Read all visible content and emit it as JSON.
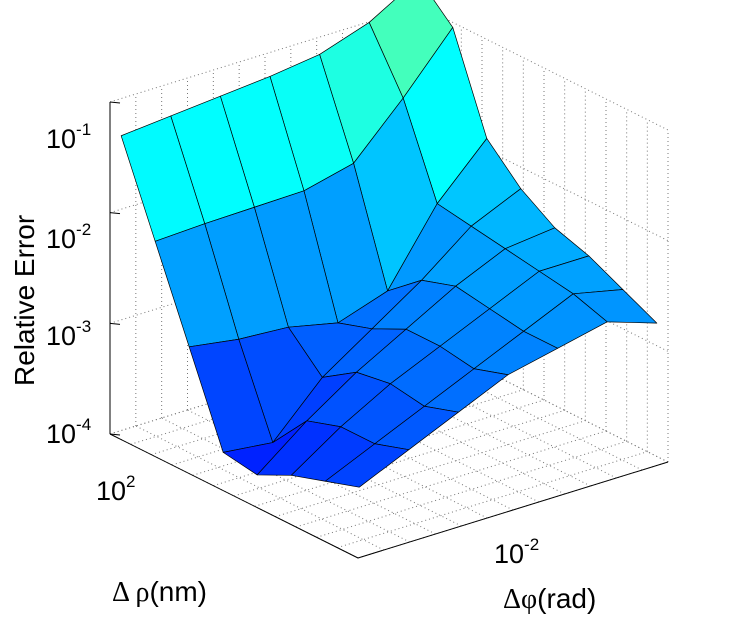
{
  "chart_data": {
    "type": "surface",
    "zlabel": "Relative Error",
    "xlabel_parts": {
      "greek": "Δ ρ",
      "unit": "(nm)"
    },
    "ylabel_parts": {
      "greek": "Δφ",
      "unit": "(rad)"
    },
    "zscale": "log",
    "zlim": [
      0.0001,
      0.1
    ],
    "z_ticks": [
      {
        "base": "10",
        "exp": "-1"
      },
      {
        "base": "10",
        "exp": "-2"
      },
      {
        "base": "10",
        "exp": "-3"
      },
      {
        "base": "10",
        "exp": "-4"
      }
    ],
    "x_ticks": [
      {
        "base": "10",
        "exp": "2"
      }
    ],
    "y_ticks": [
      {
        "base": "10",
        "exp": "-2"
      }
    ],
    "grid": true,
    "colormap": "jet",
    "z_values_log10": [
      [
        -1.3,
        -1.26,
        -1.22,
        -1.18,
        -1.12,
        -0.97,
        -0.71
      ],
      [
        -2.1,
        -2.08,
        -2.07,
        -2.06,
        -1.95,
        -1.5,
        -1.0
      ],
      [
        -2.9,
        -2.97,
        -3.0,
        -3.1,
        -2.95,
        -2.3,
        -1.85
      ],
      [
        -3.7,
        -3.75,
        -3.3,
        -3.0,
        -2.7,
        -2.35,
        -2.15
      ],
      [
        -3.75,
        -3.4,
        -3.1,
        -2.85,
        -2.6,
        -2.4,
        -2.35
      ],
      [
        -3.6,
        -3.3,
        -3.05,
        -2.85,
        -2.65,
        -2.45,
        -2.45
      ],
      [
        -3.5,
        -3.3,
        -3.1,
        -2.9,
        -2.7,
        -2.5,
        -2.6
      ],
      [
        -3.4,
        -3.2,
        -3.0,
        -2.8,
        -2.7,
        -2.6,
        -2.75
      ]
    ]
  }
}
